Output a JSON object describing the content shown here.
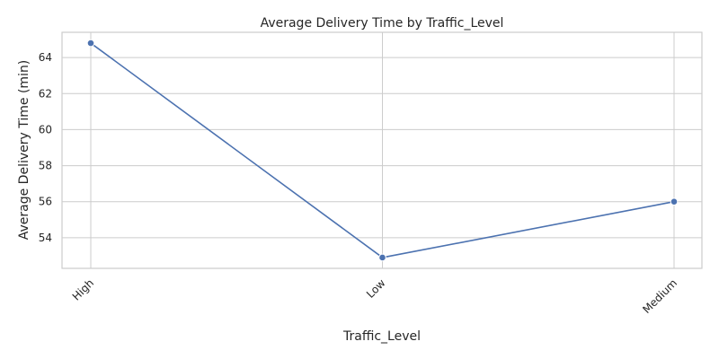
{
  "chart_data": {
    "type": "line",
    "title": "Average Delivery Time by Traffic_Level",
    "xlabel": "Traffic_Level",
    "ylabel": "Average Delivery Time (min)",
    "categories": [
      "High",
      "Low",
      "Medium"
    ],
    "series": [
      {
        "values": [
          64.8,
          52.9,
          56.0
        ]
      }
    ],
    "ylim": [
      52.3,
      65.4
    ],
    "yticks": [
      54,
      56,
      58,
      60,
      62,
      64
    ],
    "grid": true,
    "marker": "circle",
    "line_color": "#4c72b0",
    "grid_color": "#cccccc"
  }
}
